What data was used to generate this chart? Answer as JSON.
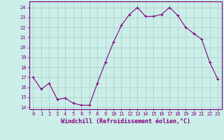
{
  "x": [
    0,
    1,
    2,
    3,
    4,
    5,
    6,
    7,
    8,
    9,
    10,
    11,
    12,
    13,
    14,
    15,
    16,
    17,
    18,
    19,
    20,
    21,
    22,
    23
  ],
  "y": [
    17.0,
    15.8,
    16.4,
    14.8,
    14.9,
    14.4,
    14.2,
    14.2,
    16.4,
    18.5,
    20.5,
    22.2,
    23.3,
    24.0,
    23.1,
    23.1,
    23.3,
    24.0,
    23.2,
    22.0,
    21.4,
    20.8,
    18.5,
    16.8
  ],
  "line_color": "#800080",
  "marker": "+",
  "marker_size": 3,
  "bg_color": "#cceee8",
  "grid_color": "#aacccc",
  "xlabel": "Windchill (Refroidissement éolien,°C)",
  "ylim": [
    13.8,
    24.6
  ],
  "xlim": [
    -0.5,
    23.5
  ],
  "yticks": [
    14,
    15,
    16,
    17,
    18,
    19,
    20,
    21,
    22,
    23,
    24
  ],
  "xticks": [
    0,
    1,
    2,
    3,
    4,
    5,
    6,
    7,
    8,
    9,
    10,
    11,
    12,
    13,
    14,
    15,
    16,
    17,
    18,
    19,
    20,
    21,
    22,
    23
  ],
  "tick_label_fontsize": 5.0,
  "xlabel_fontsize": 6.0,
  "spine_color": "#800080",
  "axis_bg_color": "#cceee8",
  "linewidth": 0.8,
  "markeredgewidth": 0.8
}
